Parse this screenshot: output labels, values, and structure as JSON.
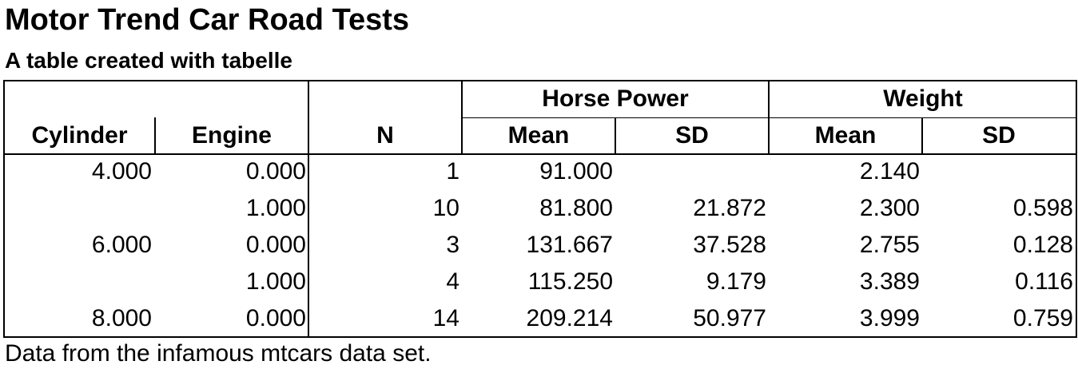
{
  "title": "Motor Trend Car Road Tests",
  "subtitle": "A table created with tabelle",
  "header": {
    "group_horsepower": "Horse Power",
    "group_weight": "Weight",
    "cylinder": "Cylinder",
    "engine": "Engine",
    "n": "N",
    "hp_mean": "Mean",
    "hp_sd": "SD",
    "wt_mean": "Mean",
    "wt_sd": "SD"
  },
  "rows": [
    {
      "cylinder": "4.000",
      "engine": "0.000",
      "n": "1",
      "hp_mean": "91.000",
      "hp_sd": "",
      "wt_mean": "2.140",
      "wt_sd": ""
    },
    {
      "cylinder": "",
      "engine": "1.000",
      "n": "10",
      "hp_mean": "81.800",
      "hp_sd": "21.872",
      "wt_mean": "2.300",
      "wt_sd": "0.598"
    },
    {
      "cylinder": "6.000",
      "engine": "0.000",
      "n": "3",
      "hp_mean": "131.667",
      "hp_sd": "37.528",
      "wt_mean": "2.755",
      "wt_sd": "0.128"
    },
    {
      "cylinder": "",
      "engine": "1.000",
      "n": "4",
      "hp_mean": "115.250",
      "hp_sd": "9.179",
      "wt_mean": "3.389",
      "wt_sd": "0.116"
    },
    {
      "cylinder": "8.000",
      "engine": "0.000",
      "n": "14",
      "hp_mean": "209.214",
      "hp_sd": "50.977",
      "wt_mean": "3.999",
      "wt_sd": "0.759"
    }
  ],
  "footnote": "Data from the infamous mtcars data set."
}
